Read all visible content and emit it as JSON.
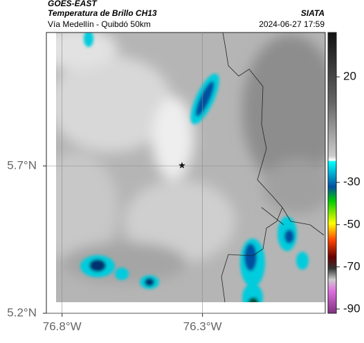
{
  "header": {
    "source": "GOES-EAST",
    "title": "Temperatura de Brillo CH13",
    "agency": "SIATA",
    "subtitle": "Vía Medellín - Quibdó 50km",
    "datetime": "2024-06-27 17:59"
  },
  "map": {
    "xlim": [
      -76.856,
      -75.863
    ],
    "ylim": [
      5.2,
      6.153
    ],
    "xticks": [
      {
        "value": -76.8,
        "label": "76.8°W"
      },
      {
        "value": -76.3,
        "label": "76.3°W"
      }
    ],
    "yticks": [
      {
        "value": 5.2,
        "label": "5.2°N"
      },
      {
        "value": 5.7,
        "label": "5.7°N"
      }
    ],
    "grid": true
  },
  "colorbar": {
    "lim": [
      -92,
      41
    ],
    "ticks": [
      20,
      -30,
      -50,
      -70,
      -90
    ]
  }
}
